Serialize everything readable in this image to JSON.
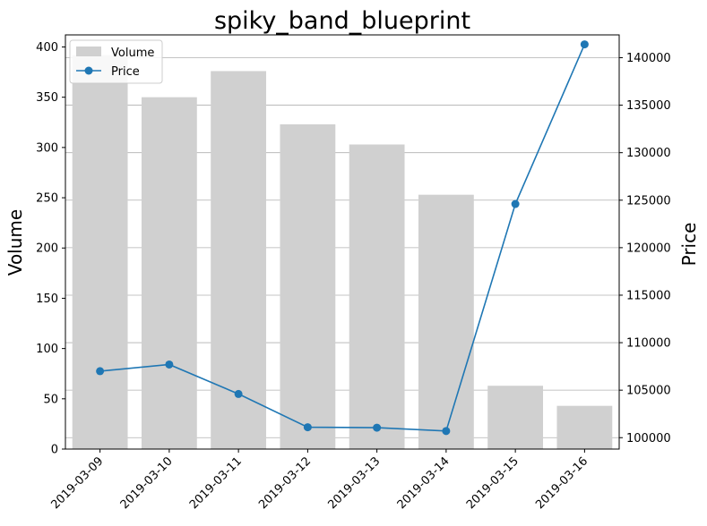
{
  "chart_data": {
    "type": "bar+line",
    "title": "spiky_band_blueprint",
    "categories": [
      "2019-03-09",
      "2019-03-10",
      "2019-03-11",
      "2019-03-12",
      "2019-03-13",
      "2019-03-14",
      "2019-03-15",
      "2019-03-16"
    ],
    "series": [
      {
        "name": "Volume",
        "type": "bar",
        "axis": "left",
        "color": "#d0d0d0",
        "values": [
          392,
          350,
          376,
          323,
          303,
          253,
          63,
          43
        ]
      },
      {
        "name": "Price",
        "type": "line",
        "axis": "right",
        "color": "#1f77b4",
        "marker": "circle",
        "values": [
          107000,
          107700,
          104600,
          101100,
          101050,
          100700,
          124600,
          141400
        ]
      }
    ],
    "xlabel": "",
    "ylabel_left": "Volume",
    "ylabel_right": "Price",
    "ylim_left": [
      0,
      412
    ],
    "ylim_right": [
      98800,
      142400
    ],
    "yticks_left": [
      0,
      50,
      100,
      150,
      200,
      250,
      300,
      350,
      400
    ],
    "yticks_right": [
      100000,
      105000,
      110000,
      115000,
      120000,
      125000,
      130000,
      135000,
      140000
    ],
    "grid": "horizontal (right axis)",
    "legend_position": "top-left",
    "x_tick_rotation": 45
  }
}
